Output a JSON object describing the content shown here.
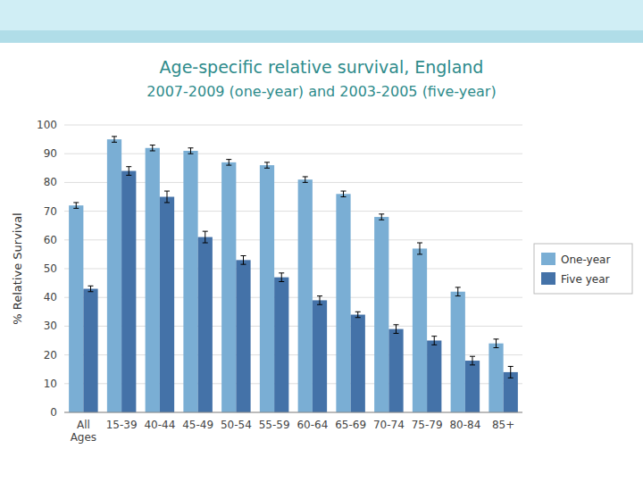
{
  "chart_data": {
    "type": "bar",
    "title": "Age-specific relative survival, England",
    "subtitle": "2007-2009 (one-year) and 2003-2005 (five-year)",
    "y_label": "% Relative Survival",
    "categories": [
      "All\nAges",
      "15-39",
      "40-44",
      "45-49",
      "50-54",
      "55-59",
      "60-64",
      "65-69",
      "70-74",
      "75-79",
      "80-84",
      "85+"
    ],
    "series": [
      {
        "name": "One-year",
        "color": "#7aaed4",
        "values": [
          72,
          95,
          92,
          91,
          87,
          86,
          81,
          76,
          68,
          57,
          42,
          24
        ],
        "errors": [
          1,
          1,
          1,
          1,
          1,
          1,
          1,
          1,
          1,
          2,
          1.5,
          1.5
        ]
      },
      {
        "name": "Five year",
        "color": "#4472a8",
        "values": [
          43,
          84,
          75,
          61,
          53,
          47,
          39,
          34,
          29,
          25,
          18,
          14
        ],
        "errors": [
          1,
          1.5,
          2,
          2,
          1.5,
          1.5,
          1.5,
          1,
          1.5,
          1.5,
          1.5,
          2
        ]
      }
    ],
    "ylim": [
      0,
      100
    ],
    "yticks": [
      0,
      10,
      20,
      30,
      40,
      50,
      60,
      70,
      80,
      90,
      100
    ],
    "grid": true,
    "legend": "right"
  }
}
